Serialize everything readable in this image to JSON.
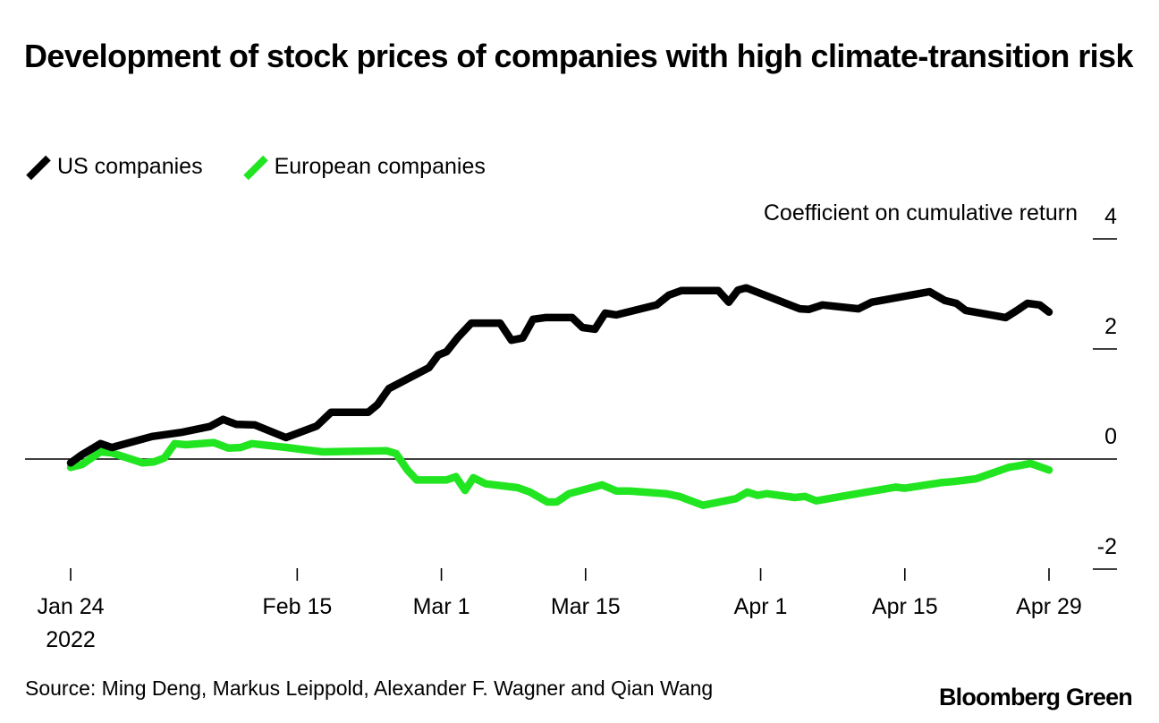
{
  "chart_data": {
    "type": "line",
    "title": "Development of stock prices of companies with high climate-transition risk",
    "xlabel": "",
    "ylabel": "Coefficient on cumulative return",
    "ylim": [
      -2,
      4
    ],
    "yticks": [
      4,
      2,
      0,
      -2
    ],
    "ytick_labels": [
      "4",
      "2",
      "0",
      "-2"
    ],
    "x_unit": "days since Jan 24, 2022",
    "xlim": [
      0,
      95
    ],
    "xticks": [
      0,
      22,
      36,
      50,
      67,
      81,
      95
    ],
    "xtick_labels": [
      "Jan 24",
      "Feb 15",
      "Mar 1",
      "Mar 15",
      "Apr 1",
      "Apr 15",
      "Apr 29"
    ],
    "xtick_sublabel": "2022",
    "zero_line": true,
    "grid": false,
    "legend": "top-left",
    "series": [
      {
        "name": "US companies",
        "color": "#000000",
        "points": [
          [
            0,
            -0.07
          ],
          [
            1.1,
            0.08
          ],
          [
            2.9,
            0.28
          ],
          [
            4,
            0.21
          ],
          [
            7.9,
            0.41
          ],
          [
            10.9,
            0.49
          ],
          [
            13.5,
            0.59
          ],
          [
            14.8,
            0.72
          ],
          [
            16.1,
            0.63
          ],
          [
            17.9,
            0.62
          ],
          [
            20.9,
            0.39
          ],
          [
            23.9,
            0.6
          ],
          [
            25.3,
            0.85
          ],
          [
            28.9,
            0.85
          ],
          [
            29.8,
            0.99
          ],
          [
            30.9,
            1.28
          ],
          [
            34.8,
            1.66
          ],
          [
            35.7,
            1.89
          ],
          [
            36.5,
            1.95
          ],
          [
            37.6,
            2.21
          ],
          [
            38.9,
            2.47
          ],
          [
            41.7,
            2.47
          ],
          [
            42.8,
            2.16
          ],
          [
            43.9,
            2.2
          ],
          [
            44.9,
            2.54
          ],
          [
            46.1,
            2.57
          ],
          [
            48.7,
            2.57
          ],
          [
            49.7,
            2.39
          ],
          [
            50.9,
            2.36
          ],
          [
            51.9,
            2.65
          ],
          [
            53,
            2.62
          ],
          [
            56.9,
            2.8
          ],
          [
            58.1,
            2.98
          ],
          [
            59.3,
            3.06
          ],
          [
            62.9,
            3.06
          ],
          [
            63.9,
            2.85
          ],
          [
            64.8,
            3.07
          ],
          [
            65.6,
            3.11
          ],
          [
            70.8,
            2.73
          ],
          [
            71.7,
            2.72
          ],
          [
            73,
            2.8
          ],
          [
            76.5,
            2.73
          ],
          [
            77.8,
            2.85
          ],
          [
            83.4,
            3.04
          ],
          [
            84.9,
            2.88
          ],
          [
            86,
            2.83
          ],
          [
            86.9,
            2.7
          ],
          [
            90.8,
            2.57
          ],
          [
            91.9,
            2.7
          ],
          [
            92.9,
            2.83
          ],
          [
            94.1,
            2.8
          ],
          [
            95,
            2.67
          ]
        ]
      },
      {
        "name": "European companies",
        "color": "#22e522",
        "points": [
          [
            0,
            -0.15
          ],
          [
            1.1,
            -0.1
          ],
          [
            2.9,
            0.13
          ],
          [
            4,
            0.11
          ],
          [
            7,
            -0.07
          ],
          [
            8.1,
            -0.05
          ],
          [
            9.1,
            0.02
          ],
          [
            10.1,
            0.28
          ],
          [
            11.2,
            0.26
          ],
          [
            13.9,
            0.3
          ],
          [
            15.3,
            0.2
          ],
          [
            16.5,
            0.21
          ],
          [
            17.6,
            0.28
          ],
          [
            21,
            0.21
          ],
          [
            22.6,
            0.17
          ],
          [
            24.5,
            0.13
          ],
          [
            30.7,
            0.15
          ],
          [
            31.6,
            0.1
          ],
          [
            32.7,
            -0.2
          ],
          [
            33.6,
            -0.38
          ],
          [
            36.5,
            -0.38
          ],
          [
            37.4,
            -0.32
          ],
          [
            38.3,
            -0.57
          ],
          [
            39.1,
            -0.34
          ],
          [
            40.3,
            -0.45
          ],
          [
            43.4,
            -0.52
          ],
          [
            44.6,
            -0.6
          ],
          [
            46.3,
            -0.78
          ],
          [
            47.2,
            -0.78
          ],
          [
            48.4,
            -0.63
          ],
          [
            51.6,
            -0.47
          ],
          [
            53,
            -0.58
          ],
          [
            54.3,
            -0.58
          ],
          [
            57.8,
            -0.63
          ],
          [
            59.1,
            -0.68
          ],
          [
            61.4,
            -0.84
          ],
          [
            64.6,
            -0.72
          ],
          [
            65.7,
            -0.6
          ],
          [
            66.7,
            -0.66
          ],
          [
            67.6,
            -0.63
          ],
          [
            70.3,
            -0.7
          ],
          [
            71.3,
            -0.68
          ],
          [
            72.4,
            -0.76
          ],
          [
            76.4,
            -0.63
          ],
          [
            80.1,
            -0.51
          ],
          [
            81,
            -0.53
          ],
          [
            84.5,
            -0.43
          ],
          [
            85.7,
            -0.41
          ],
          [
            87.9,
            -0.36
          ],
          [
            91.1,
            -0.15
          ],
          [
            92.1,
            -0.12
          ],
          [
            93.2,
            -0.08
          ],
          [
            95,
            -0.2
          ]
        ]
      }
    ]
  },
  "legend_items": [
    {
      "label": "US companies",
      "color": "#000000"
    },
    {
      "label": "European companies",
      "color": "#22e522"
    }
  ],
  "source": "Source: Ming Deng, Markus Leippold, Alexander F. Wagner and Qian Wang",
  "brand": "Bloomberg Green"
}
